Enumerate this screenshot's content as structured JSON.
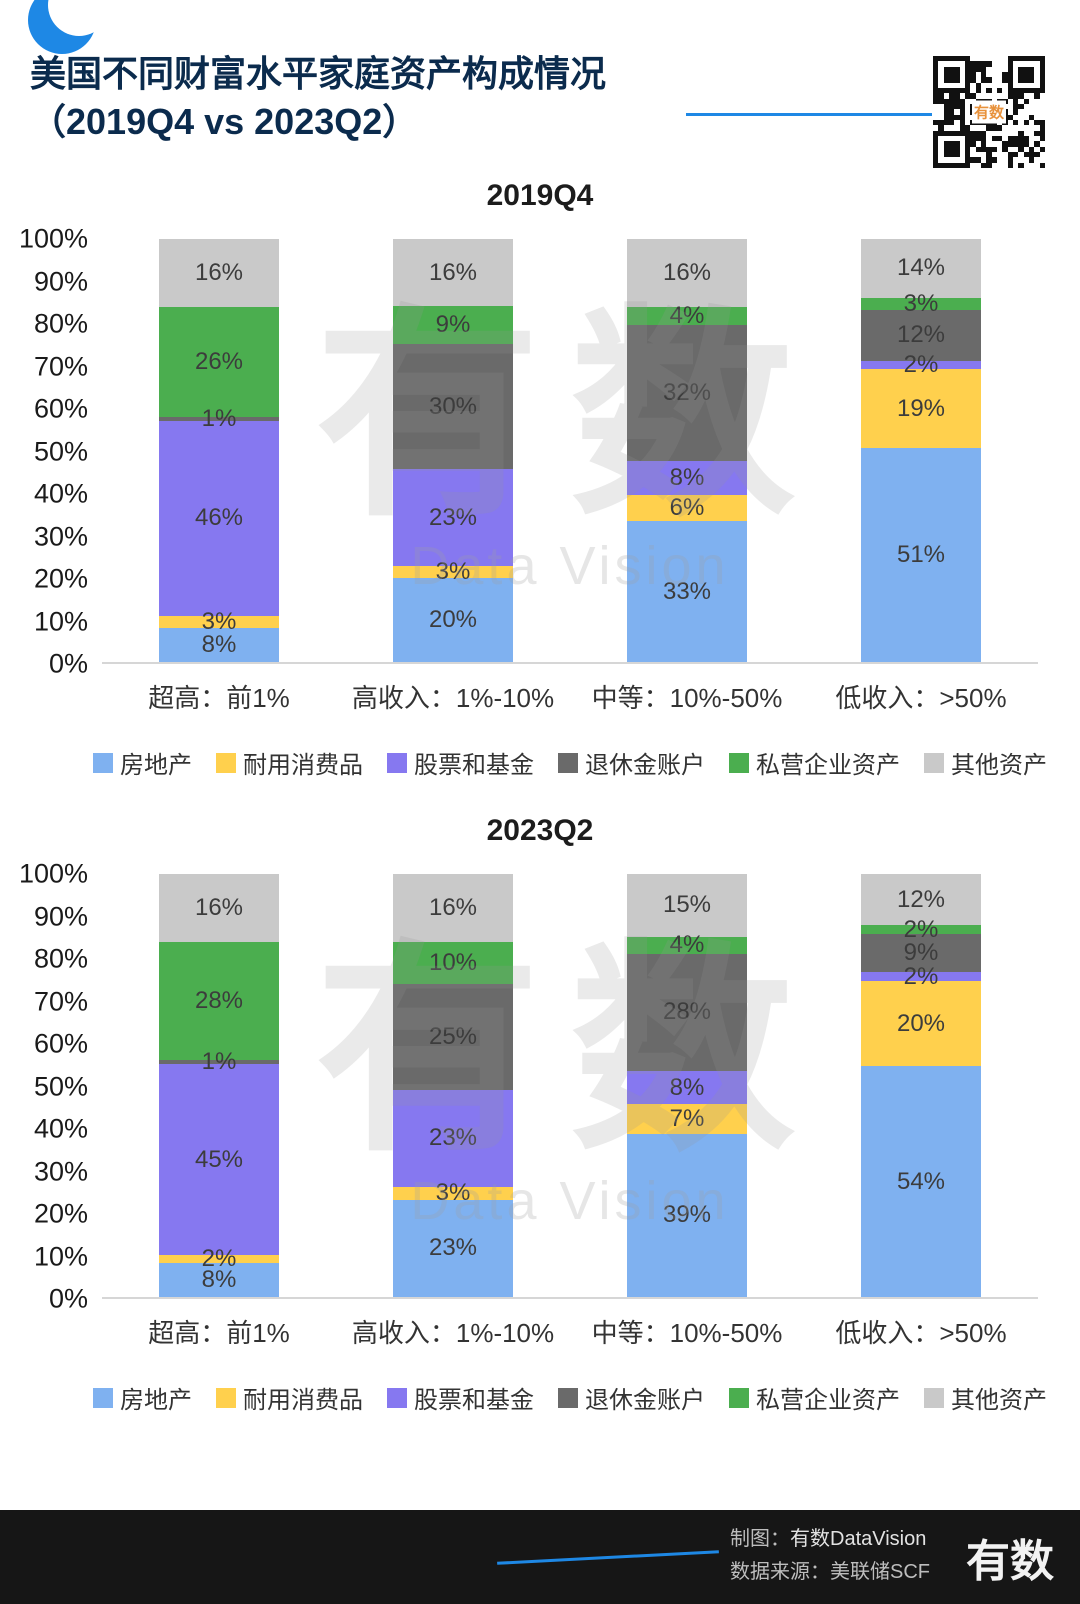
{
  "header": {
    "title_line1": "美国不同财富水平家庭资产构成情况",
    "title_line2": "（2019Q4 vs 2023Q2）",
    "qr_label": "有数"
  },
  "watermark": {
    "cn": "有数",
    "en": "Data Vision"
  },
  "footer": {
    "credit_prefix": "制图：",
    "credit_brand": "有数DataVision",
    "source": "数据来源：美联储SCF",
    "logo": "有数"
  },
  "colors": {
    "real_estate": "#7FB1F0",
    "durable_goods": "#FFD04D",
    "stocks_funds": "#8678F0",
    "retirement": "#6A6A6A",
    "private_business": "#4BAE4F",
    "other_assets": "#C9C9C9"
  },
  "chart_data": [
    {
      "type": "bar",
      "stacked": true,
      "title": "2019Q4",
      "categories": [
        "超高：前1%",
        "高收入：1%-10%",
        "中等：10%-50%",
        "低收入：>50%"
      ],
      "series": [
        {
          "name": "房地产",
          "color": "#7FB1F0",
          "values": [
            8,
            20,
            33,
            51
          ]
        },
        {
          "name": "耐用消费品",
          "color": "#FFD04D",
          "values": [
            3,
            3,
            6,
            19
          ]
        },
        {
          "name": "股票和基金",
          "color": "#8678F0",
          "values": [
            46,
            23,
            8,
            2
          ]
        },
        {
          "name": "退休金账户",
          "color": "#6A6A6A",
          "values": [
            1,
            30,
            32,
            12
          ]
        },
        {
          "name": "私营企业资产",
          "color": "#4BAE4F",
          "values": [
            26,
            9,
            4,
            3
          ]
        },
        {
          "name": "其他资产",
          "color": "#C9C9C9",
          "values": [
            16,
            16,
            16,
            14
          ]
        }
      ],
      "ylim": [
        0,
        100
      ],
      "yticks": [
        "0%",
        "10%",
        "20%",
        "30%",
        "40%",
        "50%",
        "60%",
        "70%",
        "80%",
        "90%",
        "100%"
      ],
      "grid": false,
      "legend_position": "bottom"
    },
    {
      "type": "bar",
      "stacked": true,
      "title": "2023Q2",
      "categories": [
        "超高：前1%",
        "高收入：1%-10%",
        "中等：10%-50%",
        "低收入：>50%"
      ],
      "series": [
        {
          "name": "房地产",
          "color": "#7FB1F0",
          "values": [
            8,
            23,
            39,
            54
          ]
        },
        {
          "name": "耐用消费品",
          "color": "#FFD04D",
          "values": [
            2,
            3,
            7,
            20
          ]
        },
        {
          "name": "股票和基金",
          "color": "#8678F0",
          "values": [
            45,
            23,
            8,
            2
          ]
        },
        {
          "name": "退休金账户",
          "color": "#6A6A6A",
          "values": [
            1,
            25,
            28,
            9
          ]
        },
        {
          "name": "私营企业资产",
          "color": "#4BAE4F",
          "values": [
            28,
            10,
            4,
            2
          ]
        },
        {
          "name": "其他资产",
          "color": "#C9C9C9",
          "values": [
            16,
            16,
            15,
            12
          ]
        }
      ],
      "ylim": [
        0,
        100
      ],
      "yticks": [
        "0%",
        "10%",
        "20%",
        "30%",
        "40%",
        "50%",
        "60%",
        "70%",
        "80%",
        "90%",
        "100%"
      ],
      "grid": false,
      "legend_position": "bottom"
    }
  ]
}
